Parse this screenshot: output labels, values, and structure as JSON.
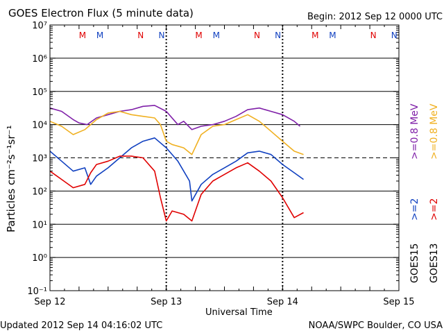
{
  "chart_data": {
    "type": "line",
    "title": "GOES Electron Flux (5 minute data)",
    "begin_label": "Begin: 2012 Sep 12 0000 UTC",
    "xlabel": "Universal Time",
    "ylabel": "Particles cm⁻²s⁻¹sr⁻¹",
    "x_units": "days since 2012 Sep 12 0000 UTC",
    "xlim": [
      0,
      3
    ],
    "ylim_log10": [
      -1,
      7
    ],
    "y_scale": "log",
    "x_ticks": [
      {
        "x": 0,
        "label": "Sep 12"
      },
      {
        "x": 1,
        "label": "Sep 13"
      },
      {
        "x": 2,
        "label": "Sep 14"
      },
      {
        "x": 3,
        "label": "Sep 15"
      }
    ],
    "y_ticks": [
      {
        "exp": 7,
        "label": "10⁷"
      },
      {
        "exp": 6,
        "label": "10⁶"
      },
      {
        "exp": 5,
        "label": "10⁵"
      },
      {
        "exp": 4,
        "label": "10⁴"
      },
      {
        "exp": 3,
        "label": "10³"
      },
      {
        "exp": 2,
        "label": "10²"
      },
      {
        "exp": 1,
        "label": "10¹"
      },
      {
        "exp": 0,
        "label": "10⁰"
      },
      {
        "exp": -1,
        "label": "10⁻¹"
      }
    ],
    "gridlines_log10": [
      6,
      5,
      4,
      2,
      1,
      0
    ],
    "threshold_log10": 3,
    "day_markers": [
      1,
      2
    ],
    "series": [
      {
        "name": "GOES15 >=0.8 MeV",
        "color": "#7f1fa8",
        "points": [
          [
            0,
            4.5
          ],
          [
            0.1,
            4.4
          ],
          [
            0.2,
            4.15
          ],
          [
            0.25,
            4.05
          ],
          [
            0.32,
            4.0
          ],
          [
            0.4,
            4.2
          ],
          [
            0.5,
            4.3
          ],
          [
            0.6,
            4.4
          ],
          [
            0.7,
            4.45
          ],
          [
            0.8,
            4.55
          ],
          [
            0.9,
            4.58
          ],
          [
            1.0,
            4.4
          ],
          [
            1.1,
            4.0
          ],
          [
            1.15,
            4.1
          ],
          [
            1.22,
            3.85
          ],
          [
            1.3,
            3.95
          ],
          [
            1.4,
            4.0
          ],
          [
            1.5,
            4.1
          ],
          [
            1.6,
            4.25
          ],
          [
            1.7,
            4.45
          ],
          [
            1.8,
            4.5
          ],
          [
            1.9,
            4.4
          ],
          [
            2.0,
            4.3
          ],
          [
            2.1,
            4.1
          ],
          [
            2.15,
            3.95
          ]
        ]
      },
      {
        "name": "GOES15 >=2 MeV",
        "color": "#1040c0",
        "points": [
          [
            0,
            3.2
          ],
          [
            0.1,
            2.9
          ],
          [
            0.2,
            2.6
          ],
          [
            0.3,
            2.7
          ],
          [
            0.35,
            2.2
          ],
          [
            0.4,
            2.45
          ],
          [
            0.5,
            2.7
          ],
          [
            0.6,
            3.0
          ],
          [
            0.7,
            3.3
          ],
          [
            0.8,
            3.5
          ],
          [
            0.9,
            3.6
          ],
          [
            1.0,
            3.3
          ],
          [
            1.1,
            2.9
          ],
          [
            1.2,
            2.3
          ],
          [
            1.22,
            1.7
          ],
          [
            1.3,
            2.2
          ],
          [
            1.4,
            2.5
          ],
          [
            1.5,
            2.7
          ],
          [
            1.6,
            2.9
          ],
          [
            1.7,
            3.15
          ],
          [
            1.8,
            3.2
          ],
          [
            1.9,
            3.1
          ],
          [
            2.0,
            2.8
          ],
          [
            2.1,
            2.55
          ],
          [
            2.18,
            2.35
          ]
        ]
      },
      {
        "name": "GOES13 >=0.8 MeV",
        "color": "#f0b020",
        "points": [
          [
            0,
            4.1
          ],
          [
            0.1,
            3.95
          ],
          [
            0.2,
            3.7
          ],
          [
            0.3,
            3.85
          ],
          [
            0.4,
            4.15
          ],
          [
            0.5,
            4.35
          ],
          [
            0.6,
            4.4
          ],
          [
            0.7,
            4.3
          ],
          [
            0.8,
            4.25
          ],
          [
            0.9,
            4.2
          ],
          [
            0.95,
            4.0
          ],
          [
            1.0,
            3.5
          ],
          [
            1.05,
            3.4
          ],
          [
            1.15,
            3.3
          ],
          [
            1.22,
            3.1
          ],
          [
            1.3,
            3.7
          ],
          [
            1.4,
            3.95
          ],
          [
            1.5,
            4.0
          ],
          [
            1.6,
            4.15
          ],
          [
            1.7,
            4.3
          ],
          [
            1.8,
            4.1
          ],
          [
            1.9,
            3.8
          ],
          [
            2.0,
            3.5
          ],
          [
            2.1,
            3.2
          ],
          [
            2.18,
            3.1
          ]
        ]
      },
      {
        "name": "GOES13 >=2 MeV",
        "color": "#e00000",
        "points": [
          [
            0,
            2.6
          ],
          [
            0.1,
            2.35
          ],
          [
            0.2,
            2.1
          ],
          [
            0.3,
            2.2
          ],
          [
            0.35,
            2.55
          ],
          [
            0.4,
            2.8
          ],
          [
            0.5,
            2.9
          ],
          [
            0.6,
            3.05
          ],
          [
            0.7,
            3.05
          ],
          [
            0.8,
            3.0
          ],
          [
            0.9,
            2.6
          ],
          [
            0.95,
            1.8
          ],
          [
            1.0,
            1.1
          ],
          [
            1.05,
            1.4
          ],
          [
            1.15,
            1.3
          ],
          [
            1.22,
            1.1
          ],
          [
            1.3,
            1.9
          ],
          [
            1.4,
            2.3
          ],
          [
            1.5,
            2.5
          ],
          [
            1.6,
            2.7
          ],
          [
            1.7,
            2.85
          ],
          [
            1.8,
            2.6
          ],
          [
            1.9,
            2.3
          ],
          [
            2.0,
            1.8
          ],
          [
            2.1,
            1.2
          ],
          [
            2.18,
            1.35
          ]
        ]
      }
    ],
    "right_legend": [
      {
        "label": ">=0.8  MeV",
        "color": "#f0b020",
        "slot": "goes13-0.8"
      },
      {
        "label": ">=0.8  MeV",
        "color": "#7f1fa8",
        "slot": "goes15-0.8"
      },
      {
        "label": ">=2",
        "color": "#e00000",
        "slot": "goes13-2"
      },
      {
        "label": ">=2",
        "color": "#1040c0",
        "slot": "goes15-2"
      },
      {
        "label": "GOES13",
        "color": "#000000",
        "slot": "goes13-name"
      },
      {
        "label": "GOES15",
        "color": "#000000",
        "slot": "goes15-name"
      }
    ],
    "markers": [
      {
        "label": "M",
        "x": 0.28,
        "color": "#e00000"
      },
      {
        "label": "M",
        "x": 0.43,
        "color": "#1040c0"
      },
      {
        "label": "N",
        "x": 0.78,
        "color": "#e00000"
      },
      {
        "label": "N",
        "x": 0.96,
        "color": "#1040c0"
      },
      {
        "label": "M",
        "x": 1.28,
        "color": "#e00000"
      },
      {
        "label": "M",
        "x": 1.43,
        "color": "#1040c0"
      },
      {
        "label": "N",
        "x": 1.78,
        "color": "#e00000"
      },
      {
        "label": "N",
        "x": 1.96,
        "color": "#1040c0"
      },
      {
        "label": "M",
        "x": 2.28,
        "color": "#e00000"
      },
      {
        "label": "M",
        "x": 2.43,
        "color": "#1040c0"
      },
      {
        "label": "N",
        "x": 2.78,
        "color": "#e00000"
      },
      {
        "label": "N",
        "x": 2.96,
        "color": "#1040c0"
      }
    ],
    "footer_left": "Updated 2012 Sep 14 04:16:02 UTC",
    "footer_right": "NOAA/SWPC Boulder, CO USA"
  }
}
